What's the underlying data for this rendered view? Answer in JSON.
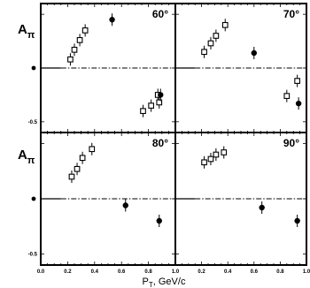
{
  "chart_data": {
    "type": "scatter",
    "xlabel": "P",
    "xlabel_sub": "T",
    "xlabel_rest": ", GeV/c",
    "ylabel": "A",
    "ylabel_sub": "π",
    "xlim": [
      0.0,
      1.0
    ],
    "x_ticks": [
      "0.0",
      "0.2",
      "0.4",
      "0.6",
      "0.8",
      "1.0"
    ],
    "ylim": [
      -0.6,
      0.6
    ],
    "y_ticks": [
      "0",
      "-0.5"
    ],
    "panels": [
      {
        "title": "60°",
        "series": [
          {
            "marker": "open-square",
            "points": [
              [
                0.22,
                0.08
              ],
              [
                0.25,
                0.17
              ],
              [
                0.29,
                0.26
              ],
              [
                0.33,
                0.35
              ],
              [
                0.76,
                -0.4
              ],
              [
                0.82,
                -0.35
              ],
              [
                0.87,
                -0.25
              ],
              [
                0.88,
                -0.32
              ]
            ]
          },
          {
            "marker": "filled-circle",
            "points": [
              [
                0.53,
                0.45
              ],
              [
                0.89,
                -0.25
              ]
            ]
          }
        ]
      },
      {
        "title": "70°",
        "series": [
          {
            "marker": "open-square",
            "points": [
              [
                0.22,
                0.15
              ],
              [
                0.27,
                0.23
              ],
              [
                0.31,
                0.3
              ],
              [
                0.38,
                0.4
              ],
              [
                0.85,
                -0.26
              ],
              [
                0.93,
                -0.12
              ]
            ]
          },
          {
            "marker": "filled-circle",
            "points": [
              [
                0.6,
                0.14
              ],
              [
                0.94,
                -0.33
              ]
            ]
          }
        ]
      },
      {
        "title": "80°",
        "series": [
          {
            "marker": "open-square",
            "points": [
              [
                0.23,
                0.2
              ],
              [
                0.27,
                0.27
              ],
              [
                0.31,
                0.37
              ],
              [
                0.38,
                0.45
              ]
            ]
          },
          {
            "marker": "filled-circle",
            "points": [
              [
                0.63,
                -0.06
              ],
              [
                0.88,
                -0.2
              ]
            ]
          }
        ]
      },
      {
        "title": "90°",
        "series": [
          {
            "marker": "open-square",
            "points": [
              [
                0.22,
                0.33
              ],
              [
                0.27,
                0.36
              ],
              [
                0.31,
                0.4
              ],
              [
                0.37,
                0.42
              ]
            ]
          },
          {
            "marker": "filled-circle",
            "points": [
              [
                0.66,
                -0.08
              ],
              [
                0.93,
                -0.2
              ]
            ]
          }
        ]
      }
    ]
  }
}
